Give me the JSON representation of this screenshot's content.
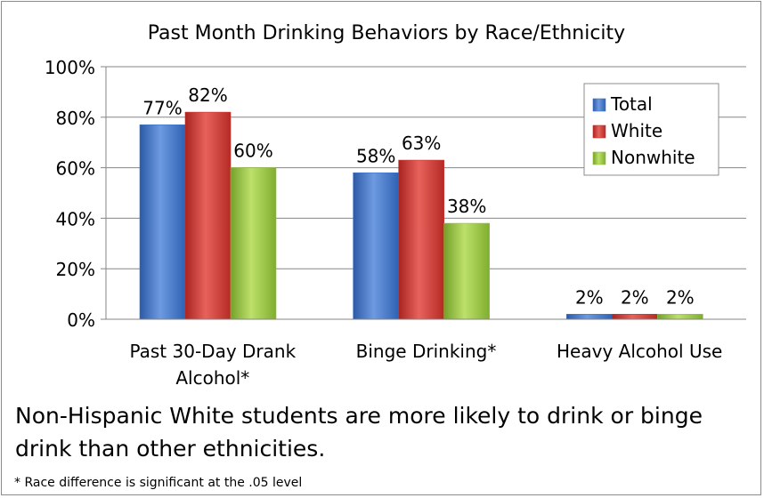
{
  "chart_data": {
    "type": "bar",
    "title": "Past Month Drinking Behaviors by Race/Ethnicity",
    "categories": [
      "Past 30-Day Drank Alcohol*",
      "Binge Drinking*",
      "Heavy Alcohol Use"
    ],
    "category_lines": [
      [
        "Past 30-Day Drank",
        "Alcohol*"
      ],
      [
        "Binge Drinking*"
      ],
      [
        "Heavy Alcohol Use"
      ]
    ],
    "series": [
      {
        "name": "Total",
        "values": [
          77,
          58,
          2
        ],
        "color": "#3f74c9"
      },
      {
        "name": "White",
        "values": [
          82,
          63,
          2
        ],
        "color": "#c9302c"
      },
      {
        "name": "Nonwhite",
        "values": [
          60,
          38,
          2
        ],
        "color": "#93bf38"
      }
    ],
    "data_labels": [
      [
        "77%",
        "58%",
        "2%"
      ],
      [
        "82%",
        "63%",
        "2%"
      ],
      [
        "60%",
        "38%",
        "2%"
      ]
    ],
    "y_ticks": [
      "0%",
      "20%",
      "40%",
      "60%",
      "80%",
      "100%"
    ],
    "ylim": [
      0,
      100
    ],
    "grid": true,
    "legend_position": "top-right",
    "xlabel": "",
    "ylabel": ""
  },
  "caption": "Non-Hispanic White students are more likely to drink or binge drink than other ethnicities.",
  "footnote": "* Race difference is significant at the .05 level"
}
